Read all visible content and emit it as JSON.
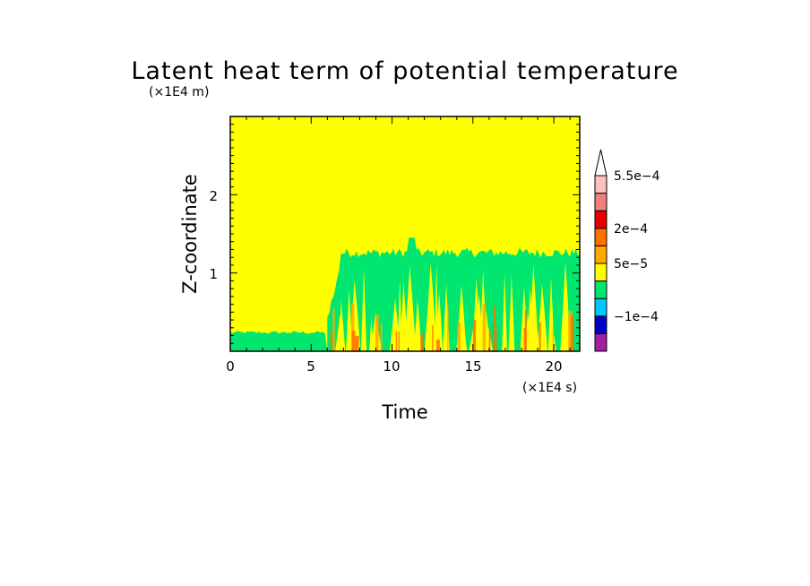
{
  "chart_data": {
    "type": "heatmap",
    "title": "Latent heat term of potential temperature",
    "xlabel": "Time",
    "ylabel": "Z-coordinate",
    "x_unit": "(×1E4 s)",
    "y_unit": "(×1E4 m)",
    "xlim": [
      0,
      21.6
    ],
    "ylim": [
      0,
      3
    ],
    "x_ticks": [
      0,
      5,
      10,
      15,
      20
    ],
    "y_ticks": [
      1,
      2
    ],
    "colorbar": {
      "colors": [
        "#a020a0",
        "#0000c8",
        "#00c8ff",
        "#00e66e",
        "#ffff00",
        "#ffaa00",
        "#ff7000",
        "#e60000",
        "#f08080",
        "#ffc0c0",
        "#ffffff"
      ],
      "labels": [
        "−1e−4",
        "5e−5",
        "2e−4",
        "5.5e−4"
      ],
      "label_values": [
        -0.0001,
        5e-05,
        0.0002,
        0.00055
      ],
      "extend": "max"
    },
    "regions": [
      {
        "name": "background",
        "value": "5e-5",
        "color": "#ffff00"
      },
      {
        "name": "low-level band",
        "x_range": [
          0,
          6
        ],
        "z_range": [
          0,
          0.25
        ],
        "color": "#00e66e"
      },
      {
        "name": "convective layer",
        "x_range": [
          6,
          21.6
        ],
        "z_range": [
          0,
          1.3
        ],
        "color": "#00e66e"
      }
    ]
  },
  "labels": {
    "x_tick_labels": [
      "0",
      "5",
      "10",
      "15",
      "20"
    ],
    "y_tick_labels": [
      "1",
      "2"
    ]
  }
}
